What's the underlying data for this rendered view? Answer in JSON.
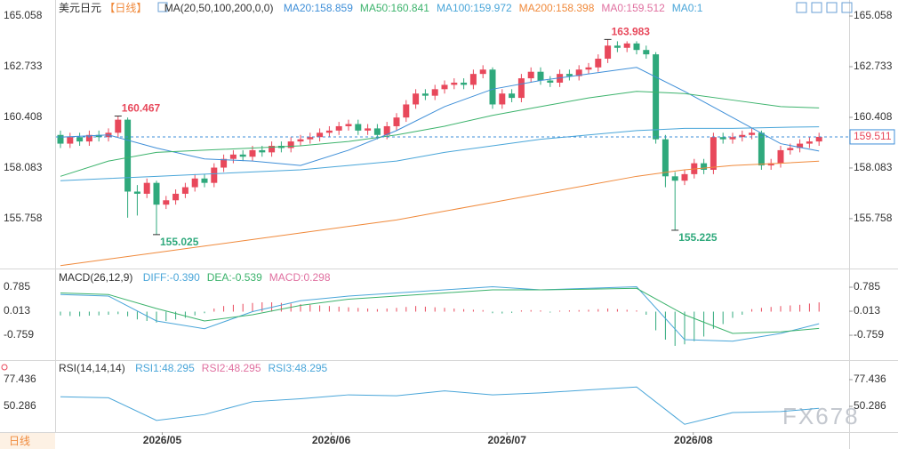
{
  "tab": "日线",
  "watermark": "FX678",
  "chart_data": [
    {
      "type": "candlestick",
      "title": "美元日元",
      "period": "【日线】",
      "indicator": "MA(20,50,100,200,0,0)",
      "extra_labels": [
        "MA0:159.512",
        "MA0:1"
      ],
      "up_color": "#e8485b",
      "down_color": "#2fa97c",
      "ylim": [
        153.55,
        165.59
      ],
      "yticks": [
        155.758,
        158.083,
        160.408,
        162.733,
        165.058
      ],
      "open": [
        159.6,
        159.2,
        159.5,
        159.3,
        159.6,
        159.5,
        159.7,
        160.3,
        157.0,
        156.9,
        157.4,
        156.4,
        156.6,
        156.9,
        157.2,
        157.6,
        157.4,
        158.1,
        158.5,
        158.7,
        158.6,
        158.9,
        158.8,
        159.1,
        159.0,
        159.3,
        159.4,
        159.5,
        159.7,
        159.8,
        160.0,
        160.1,
        159.8,
        159.9,
        159.6,
        160.0,
        160.4,
        161.0,
        161.5,
        161.4,
        161.7,
        161.9,
        162.0,
        161.9,
        162.4,
        162.6,
        161.0,
        161.5,
        161.3,
        162.2,
        162.5,
        162.1,
        162.0,
        162.4,
        162.3,
        162.6,
        162.7,
        163.1,
        163.7,
        163.6,
        163.8,
        163.5,
        163.3,
        159.4,
        157.7,
        157.5,
        157.8,
        158.3,
        158.0,
        159.5,
        159.4,
        159.5,
        159.6,
        159.7,
        158.2,
        158.3,
        158.9,
        159.0,
        159.2,
        159.3
      ],
      "high": [
        159.8,
        159.7,
        159.7,
        159.8,
        159.8,
        159.9,
        160.467,
        160.4,
        157.3,
        157.6,
        157.5,
        156.8,
        157.1,
        157.4,
        157.8,
        157.8,
        158.3,
        158.7,
        158.9,
        158.9,
        159.1,
        159.1,
        159.3,
        159.3,
        159.5,
        159.6,
        159.7,
        159.9,
        160.0,
        160.2,
        160.3,
        160.3,
        160.1,
        160.1,
        160.2,
        160.6,
        161.2,
        161.7,
        161.7,
        161.9,
        162.1,
        162.2,
        162.2,
        162.6,
        162.8,
        162.7,
        161.7,
        161.7,
        162.4,
        162.7,
        162.7,
        162.3,
        162.6,
        162.6,
        162.8,
        162.9,
        163.3,
        163.983,
        163.9,
        163.9,
        163.9,
        163.7,
        163.4,
        159.6,
        157.9,
        158.0,
        158.5,
        158.5,
        159.7,
        159.7,
        159.7,
        159.8,
        159.9,
        159.8,
        158.5,
        159.1,
        159.2,
        159.4,
        159.5,
        159.7
      ],
      "low": [
        159.0,
        159.0,
        159.1,
        159.1,
        159.3,
        159.3,
        159.5,
        155.8,
        155.9,
        156.7,
        155.025,
        156.2,
        156.4,
        156.7,
        157.0,
        157.2,
        157.2,
        157.9,
        158.3,
        158.4,
        158.4,
        158.6,
        158.6,
        158.8,
        158.8,
        159.1,
        159.2,
        159.3,
        159.5,
        159.6,
        159.8,
        159.6,
        159.6,
        159.4,
        159.4,
        159.8,
        160.2,
        160.8,
        161.2,
        161.2,
        161.5,
        161.7,
        161.7,
        161.7,
        162.2,
        160.8,
        160.8,
        161.1,
        161.1,
        162.0,
        161.9,
        161.8,
        161.8,
        162.1,
        162.1,
        162.4,
        162.5,
        162.9,
        163.4,
        163.4,
        163.3,
        163.1,
        159.2,
        157.2,
        155.225,
        157.3,
        157.6,
        157.8,
        157.8,
        159.2,
        159.2,
        159.3,
        159.4,
        158.0,
        158.0,
        158.1,
        158.7,
        158.8,
        159.0,
        159.1
      ],
      "close": [
        159.2,
        159.5,
        159.3,
        159.6,
        159.5,
        159.7,
        160.3,
        157.0,
        156.9,
        157.4,
        156.4,
        156.6,
        156.9,
        157.2,
        157.6,
        157.4,
        158.1,
        158.5,
        158.7,
        158.6,
        158.9,
        158.8,
        159.1,
        159.0,
        159.3,
        159.4,
        159.5,
        159.7,
        159.8,
        160.0,
        160.1,
        159.8,
        159.9,
        159.6,
        160.0,
        160.4,
        161.0,
        161.5,
        161.4,
        161.7,
        161.9,
        162.0,
        161.9,
        162.4,
        162.6,
        161.0,
        161.5,
        161.3,
        162.2,
        162.5,
        162.1,
        162.0,
        162.4,
        162.3,
        162.6,
        162.7,
        163.1,
        163.7,
        163.6,
        163.8,
        163.5,
        163.3,
        159.4,
        157.7,
        157.5,
        157.8,
        158.3,
        158.0,
        159.5,
        159.4,
        159.5,
        159.6,
        159.7,
        158.2,
        158.3,
        158.9,
        159.0,
        159.2,
        159.3,
        159.511
      ],
      "series": [
        {
          "name": "MA20:158.859",
          "color": "#3f8fd8",
          "x": [
            0,
            5,
            10,
            15,
            20,
            25,
            30,
            35,
            40,
            45,
            50,
            55,
            60,
            65,
            70,
            75,
            79
          ],
          "values": [
            159.5,
            159.6,
            159.0,
            158.5,
            158.4,
            158.2,
            158.9,
            159.8,
            160.9,
            161.7,
            162.1,
            162.4,
            162.7,
            161.6,
            160.4,
            159.2,
            158.859
          ]
        },
        {
          "name": "MA50:160.841",
          "color": "#3cb36c",
          "x": [
            0,
            5,
            10,
            15,
            20,
            25,
            30,
            35,
            40,
            45,
            50,
            55,
            60,
            65,
            70,
            75,
            79
          ],
          "values": [
            157.7,
            158.4,
            158.8,
            158.9,
            159.0,
            159.1,
            159.3,
            159.6,
            160.0,
            160.5,
            160.9,
            161.3,
            161.6,
            161.5,
            161.2,
            160.9,
            160.841
          ]
        },
        {
          "name": "MA100:159.972",
          "color": "#4aa6d9",
          "x": [
            0,
            5,
            10,
            15,
            20,
            25,
            30,
            35,
            40,
            45,
            50,
            55,
            60,
            65,
            70,
            75,
            79
          ],
          "values": [
            157.5,
            157.6,
            157.7,
            157.8,
            157.9,
            158.0,
            158.2,
            158.4,
            158.8,
            159.1,
            159.4,
            159.6,
            159.8,
            159.9,
            159.9,
            159.95,
            159.972
          ]
        },
        {
          "name": "MA200:158.398",
          "color": "#f08a3c",
          "x": [
            0,
            5,
            10,
            15,
            20,
            25,
            30,
            35,
            40,
            45,
            50,
            55,
            60,
            65,
            70,
            75,
            79
          ],
          "values": [
            153.6,
            153.9,
            154.2,
            154.5,
            154.8,
            155.1,
            155.4,
            155.7,
            156.1,
            156.5,
            156.9,
            157.3,
            157.7,
            158.0,
            158.2,
            158.3,
            158.398
          ]
        }
      ]
    },
    {
      "type": "macd",
      "title": "MACD(26,12,9)",
      "ylim": [
        -1.5,
        1.3
      ],
      "yticks": [
        -0.759,
        0.013,
        0.785
      ],
      "series": [
        {
          "name": "DIFF:-0.390",
          "color": "#4aa6d9",
          "x": [
            0,
            5,
            10,
            15,
            20,
            25,
            30,
            35,
            40,
            45,
            50,
            55,
            60,
            65,
            70,
            75,
            79
          ],
          "values": [
            0.55,
            0.5,
            -0.3,
            -0.55,
            0.0,
            0.35,
            0.5,
            0.6,
            0.7,
            0.8,
            0.7,
            0.75,
            0.8,
            -0.9,
            -0.95,
            -0.7,
            -0.39
          ]
        },
        {
          "name": "DEA:-0.539",
          "color": "#3cb36c",
          "x": [
            0,
            5,
            10,
            15,
            20,
            25,
            30,
            35,
            40,
            45,
            50,
            55,
            60,
            65,
            70,
            75,
            79
          ],
          "values": [
            0.6,
            0.55,
            0.1,
            -0.3,
            -0.1,
            0.2,
            0.4,
            0.5,
            0.6,
            0.7,
            0.7,
            0.72,
            0.75,
            -0.1,
            -0.7,
            -0.65,
            -0.539
          ]
        }
      ],
      "histogram": {
        "name": "MACD:0.298",
        "up_color": "#e8485b",
        "down_color": "#2fa97c",
        "values": [
          -0.12,
          -0.14,
          -0.15,
          -0.13,
          -0.12,
          -0.1,
          -0.08,
          -0.15,
          -0.25,
          -0.3,
          -0.35,
          -0.3,
          -0.25,
          -0.2,
          -0.12,
          -0.05,
          0.1,
          0.18,
          0.22,
          0.25,
          0.28,
          0.3,
          0.3,
          0.28,
          0.26,
          0.24,
          0.22,
          0.2,
          0.18,
          0.16,
          0.14,
          0.12,
          0.1,
          0.08,
          0.1,
          0.12,
          0.15,
          0.18,
          0.16,
          0.14,
          0.12,
          0.1,
          0.08,
          0.06,
          0.05,
          -0.05,
          -0.06,
          -0.04,
          0.04,
          0.05,
          0.04,
          -0.03,
          0.03,
          0.04,
          0.05,
          0.06,
          0.08,
          0.1,
          0.08,
          0.06,
          0.04,
          -0.1,
          -0.6,
          -0.9,
          -1.1,
          -1.05,
          -0.95,
          -0.8,
          -0.55,
          -0.4,
          -0.2,
          -0.1,
          0.08,
          0.12,
          0.15,
          0.18,
          0.2,
          0.22,
          0.26,
          0.298
        ]
      }
    },
    {
      "type": "line",
      "title": "RSI(14,14,14)",
      "ylim": [
        25,
        95.5
      ],
      "yticks": [
        50.286,
        77.436
      ],
      "extra_labels": [
        "RSI2:48.295",
        "RSI3:48.295"
      ],
      "xticks": [
        {
          "value": 10.6,
          "label": "2026/05"
        },
        {
          "value": 28.2,
          "label": "2026/06"
        },
        {
          "value": 46.5,
          "label": "2026/07"
        },
        {
          "value": 65.9,
          "label": "2026/08"
        }
      ],
      "series": [
        {
          "name": "RSI1:48.295",
          "color": "#4aa6d9",
          "x": [
            0,
            5,
            10,
            15,
            20,
            25,
            30,
            35,
            40,
            45,
            50,
            55,
            60,
            65,
            70,
            75,
            79
          ],
          "values": [
            60,
            59,
            36,
            42,
            55,
            58,
            62,
            61,
            66,
            62,
            64,
            67,
            70,
            32,
            44,
            45,
            48.295
          ]
        }
      ]
    }
  ]
}
